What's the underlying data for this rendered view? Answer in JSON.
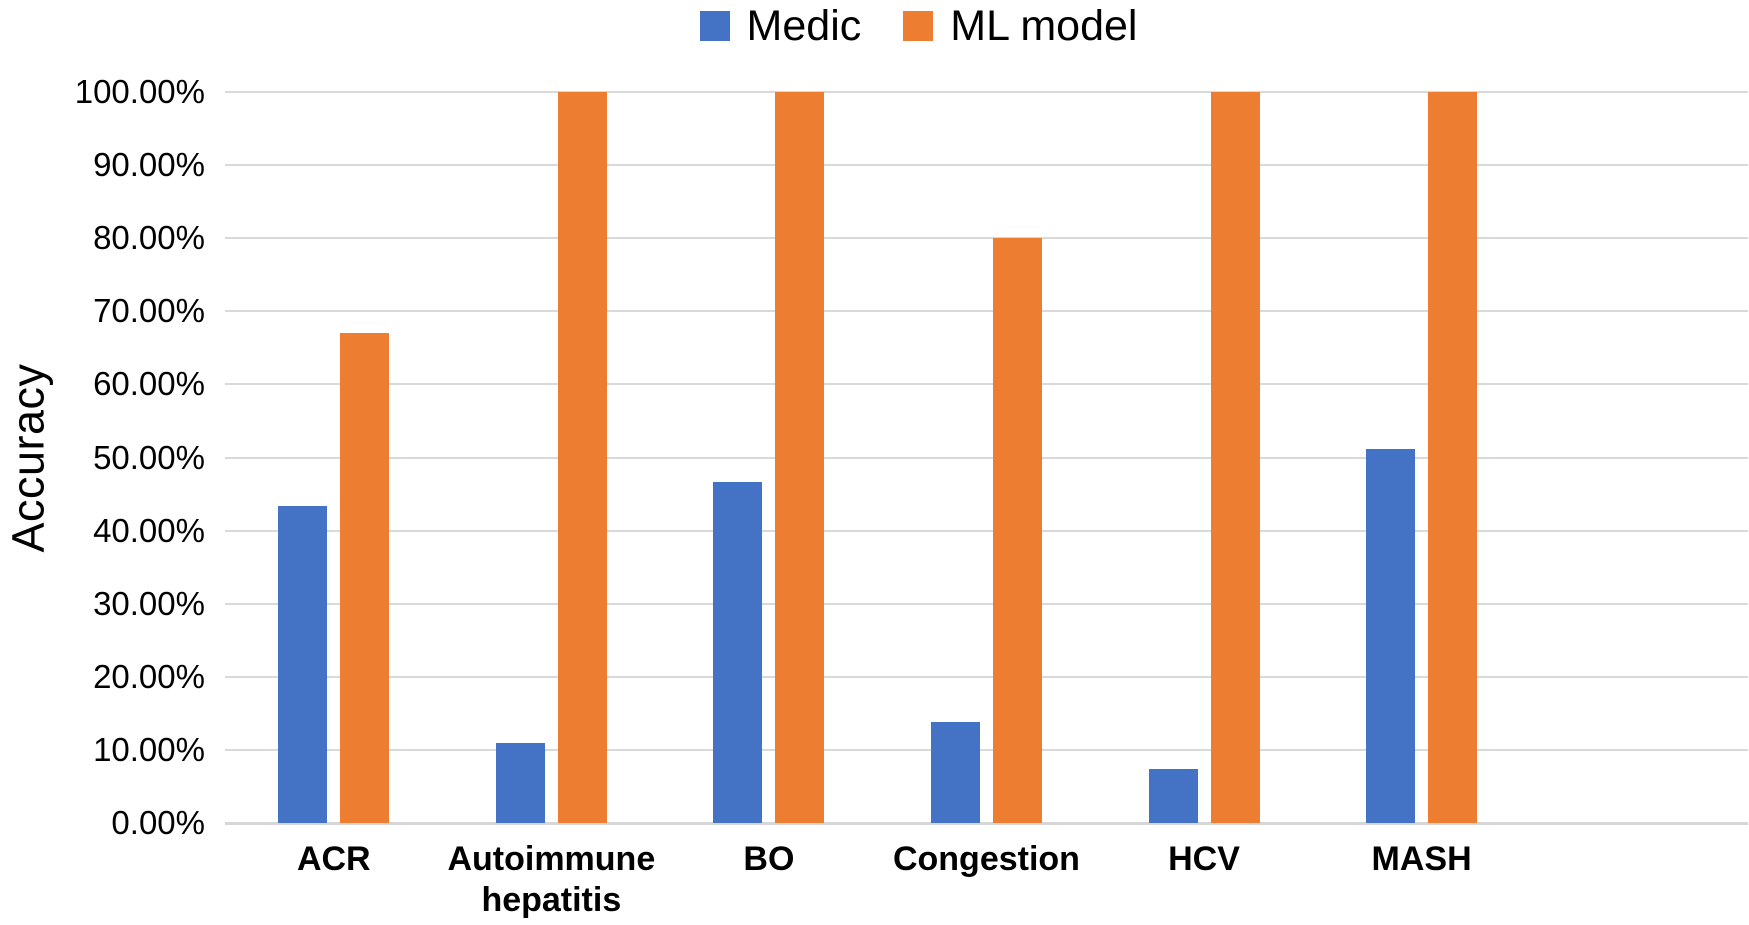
{
  "chart_data": {
    "type": "bar",
    "title": "",
    "ylabel": "Accuracy",
    "xlabel": "",
    "categories": [
      "ACR",
      "Autoimmune hepatitis",
      "BO",
      "Congestion",
      "HCV",
      "MASH"
    ],
    "series": [
      {
        "name": "Medic",
        "color": "#4472C4",
        "values": [
          43.3,
          11.0,
          46.7,
          13.8,
          7.4,
          51.1
        ]
      },
      {
        "name": "ML model",
        "color": "#ED7D31",
        "values": [
          67.0,
          100.0,
          100.0,
          80.0,
          100.0,
          100.0
        ]
      }
    ],
    "y_axis": {
      "min": 0,
      "max": 100,
      "step": 10,
      "tick_labels": [
        "0.00%",
        "10.00%",
        "20.00%",
        "30.00%",
        "40.00%",
        "50.00%",
        "60.00%",
        "70.00%",
        "80.00%",
        "90.00%",
        "100.00%"
      ]
    },
    "legend_position": "top-center",
    "grid": true,
    "plot_slots": 7,
    "gridline_color": "#D9D9D9",
    "text_color": "#000000"
  }
}
